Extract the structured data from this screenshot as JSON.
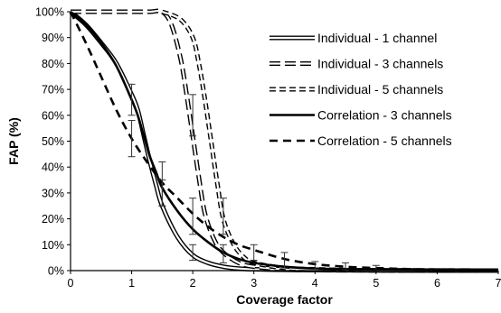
{
  "chart_data": {
    "type": "line",
    "title": "",
    "xlabel": "Coverage factor",
    "ylabel": "FAP (%)",
    "xlim": [
      0,
      7
    ],
    "ylim": [
      0,
      100
    ],
    "x_ticks": [
      "0",
      "1",
      "2",
      "3",
      "4",
      "5",
      "6",
      "7"
    ],
    "y_ticks": [
      "0%",
      "10%",
      "20%",
      "30%",
      "40%",
      "50%",
      "60%",
      "70%",
      "80%",
      "90%",
      "100%"
    ],
    "grid": false,
    "legend": {
      "position": "top-right"
    },
    "series": [
      {
        "name": "Individual - 1 channel",
        "style": "double-line",
        "points": [
          [
            0,
            100
          ],
          [
            0.25,
            95
          ],
          [
            0.5,
            88
          ],
          [
            0.75,
            80
          ],
          [
            1.0,
            68
          ],
          [
            1.1,
            62
          ],
          [
            1.2,
            52
          ],
          [
            1.3,
            42
          ],
          [
            1.4,
            33
          ],
          [
            1.5,
            25
          ],
          [
            1.75,
            13
          ],
          [
            2.0,
            6
          ],
          [
            2.25,
            3
          ],
          [
            2.5,
            1.5
          ],
          [
            2.75,
            0.8
          ],
          [
            3.0,
            0.5
          ],
          [
            3.5,
            0.3
          ],
          [
            4.0,
            0.2
          ],
          [
            5.0,
            0.1
          ],
          [
            6.0,
            0
          ],
          [
            7.0,
            0
          ]
        ],
        "error_bars": [
          [
            1.0,
            60,
            72
          ],
          [
            1.5,
            25,
            42
          ],
          [
            2.0,
            4,
            10
          ]
        ]
      },
      {
        "name": "Individual - 3 channels",
        "style": "double-long-dash",
        "points": [
          [
            0,
            100
          ],
          [
            1.0,
            100
          ],
          [
            1.3,
            100
          ],
          [
            1.5,
            100
          ],
          [
            1.65,
            95
          ],
          [
            1.8,
            82
          ],
          [
            1.9,
            68
          ],
          [
            2.0,
            52
          ],
          [
            2.1,
            36
          ],
          [
            2.2,
            22
          ],
          [
            2.35,
            12
          ],
          [
            2.5,
            7
          ],
          [
            2.75,
            3
          ],
          [
            3.0,
            1.5
          ],
          [
            3.5,
            0.5
          ],
          [
            4.0,
            0.2
          ],
          [
            5.0,
            0.1
          ],
          [
            7.0,
            0
          ]
        ],
        "error_bars": [
          [
            2.0,
            14,
            28
          ],
          [
            2.5,
            3,
            10
          ]
        ]
      },
      {
        "name": "Individual - 5 channels",
        "style": "double-short-dash",
        "points": [
          [
            1.5,
            100
          ],
          [
            1.8,
            97
          ],
          [
            2.0,
            90
          ],
          [
            2.1,
            80
          ],
          [
            2.2,
            66
          ],
          [
            2.3,
            50
          ],
          [
            2.4,
            34
          ],
          [
            2.5,
            20
          ],
          [
            2.65,
            11
          ],
          [
            2.8,
            6
          ],
          [
            3.0,
            3
          ],
          [
            3.5,
            1
          ],
          [
            4.0,
            0.5
          ],
          [
            5.0,
            0.1
          ],
          [
            7.0,
            0
          ]
        ],
        "error_bars": [
          [
            2.0,
            52,
            68
          ],
          [
            2.5,
            14,
            28
          ]
        ]
      },
      {
        "name": "Correlation - 3 channels",
        "style": "solid",
        "points": [
          [
            0,
            100
          ],
          [
            0.25,
            95
          ],
          [
            0.5,
            88
          ],
          [
            0.75,
            79
          ],
          [
            1.0,
            66
          ],
          [
            1.1,
            60
          ],
          [
            1.2,
            52
          ],
          [
            1.3,
            44
          ],
          [
            1.4,
            38
          ],
          [
            1.5,
            32
          ],
          [
            1.75,
            23
          ],
          [
            2.0,
            16
          ],
          [
            2.25,
            11
          ],
          [
            2.5,
            7
          ],
          [
            2.75,
            4.5
          ],
          [
            3.0,
            3
          ],
          [
            3.5,
            1.5
          ],
          [
            4.0,
            0.8
          ],
          [
            5.0,
            0.3
          ],
          [
            6.0,
            0.1
          ],
          [
            7.0,
            0
          ]
        ],
        "error_bars": [
          [
            1.0,
            44,
            58
          ],
          [
            1.5,
            25,
            35
          ]
        ]
      },
      {
        "name": "Correlation - 5 channels",
        "style": "dashed",
        "points": [
          [
            0,
            100
          ],
          [
            0.25,
            88
          ],
          [
            0.5,
            75
          ],
          [
            0.75,
            62
          ],
          [
            1.0,
            51
          ],
          [
            1.25,
            42
          ],
          [
            1.5,
            34
          ],
          [
            1.75,
            28
          ],
          [
            2.0,
            22
          ],
          [
            2.25,
            17
          ],
          [
            2.5,
            13
          ],
          [
            2.75,
            10
          ],
          [
            3.0,
            8
          ],
          [
            3.5,
            4.5
          ],
          [
            4.0,
            2.5
          ],
          [
            4.5,
            1.5
          ],
          [
            5.0,
            1
          ],
          [
            6.0,
            0.3
          ],
          [
            7.0,
            0
          ]
        ],
        "error_bars": [
          [
            3.0,
            4,
            10
          ],
          [
            3.5,
            1,
            7
          ],
          [
            4.0,
            0.5,
            3.5
          ],
          [
            4.5,
            0.3,
            3
          ],
          [
            5.0,
            0,
            2
          ]
        ]
      }
    ]
  }
}
